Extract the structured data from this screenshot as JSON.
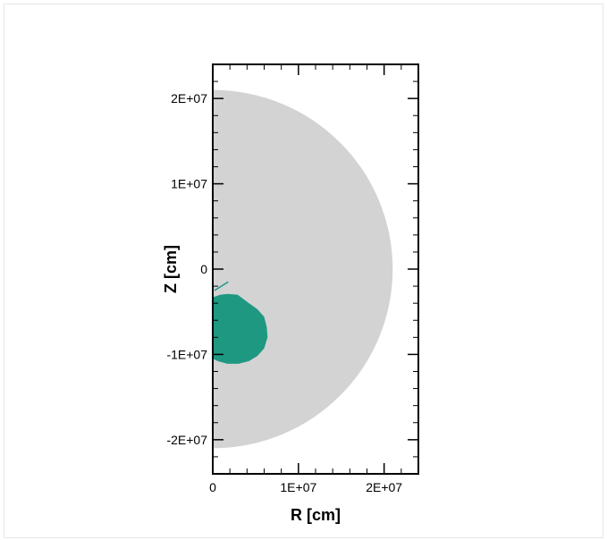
{
  "chart_data": {
    "type": "area",
    "title": "",
    "xlabel": "R [cm]",
    "ylabel": "Z [cm]",
    "xlim": [
      0,
      24000000
    ],
    "ylim": [
      -24000000,
      24000000
    ],
    "x_ticks": [
      {
        "value": 0,
        "label": "0"
      },
      {
        "value": 10000000,
        "label": "1E+07"
      },
      {
        "value": 20000000,
        "label": "2E+07"
      }
    ],
    "y_ticks": [
      {
        "value": 20000000,
        "label": "2E+07"
      },
      {
        "value": 10000000,
        "label": "1E+07"
      },
      {
        "value": 0,
        "label": "0"
      },
      {
        "value": -10000000,
        "label": "-1E+07"
      },
      {
        "value": -20000000,
        "label": "-2E+07"
      }
    ],
    "grid": false,
    "legend": false,
    "regions": [
      {
        "color": "#d3d3d3",
        "shape": "half-disk",
        "radius": 21000000
      },
      {
        "color": "#1f9882",
        "shape": "plume",
        "points": [
          [
            0,
            -3300000
          ],
          [
            900000,
            -3000000
          ],
          [
            1700000,
            -2900000
          ],
          [
            2900000,
            -3000000
          ],
          [
            4100000,
            -3900000
          ],
          [
            5200000,
            -4700000
          ],
          [
            6000000,
            -5600000
          ],
          [
            6300000,
            -6800000
          ],
          [
            6400000,
            -8000000
          ],
          [
            6000000,
            -9300000
          ],
          [
            5200000,
            -10200000
          ],
          [
            4200000,
            -10800000
          ],
          [
            3000000,
            -11100000
          ],
          [
            1700000,
            -11100000
          ],
          [
            600000,
            -10800000
          ],
          [
            0,
            -10500000
          ]
        ],
        "filament": [
          [
            200000,
            -2500000
          ],
          [
            1000000,
            -2000000
          ],
          [
            1800000,
            -1500000
          ]
        ]
      }
    ]
  }
}
